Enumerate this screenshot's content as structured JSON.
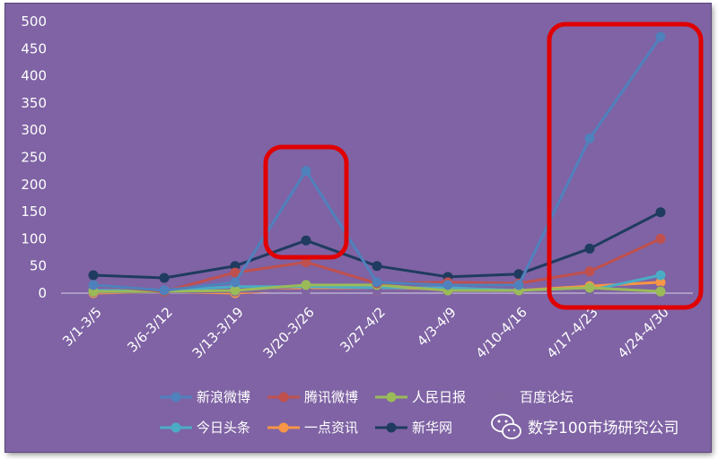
{
  "chart_data": {
    "type": "line",
    "categories": [
      "3/1-3/5",
      "3/6-3/12",
      "3/13-3/19",
      "3/20-3/26",
      "3/27-4/2",
      "4/3-4/9",
      "4/10-4/16",
      "4/17-4/23",
      "4/24-4/30"
    ],
    "ylim": [
      0,
      500
    ],
    "yticks": [
      0,
      50,
      100,
      150,
      200,
      250,
      300,
      350,
      400,
      450,
      500
    ],
    "grid": false,
    "legend_position": "bottom",
    "series": [
      {
        "name": "新浪微博",
        "color": "#4f81bd",
        "values": [
          15,
          5,
          20,
          225,
          20,
          15,
          15,
          285,
          472
        ]
      },
      {
        "name": "腾讯微博",
        "color": "#c0504d",
        "values": [
          15,
          3,
          38,
          57,
          18,
          20,
          18,
          40,
          100
        ]
      },
      {
        "name": "人民日报",
        "color": "#9bbb59",
        "values": [
          3,
          3,
          5,
          15,
          15,
          5,
          5,
          10,
          3
        ]
      },
      {
        "name": "百度论坛",
        "color": "#8064a2",
        "values": [
          2,
          2,
          3,
          5,
          5,
          3,
          3,
          5,
          5
        ]
      },
      {
        "name": "今日头条",
        "color": "#4bacc6",
        "values": [
          5,
          5,
          12,
          12,
          10,
          10,
          5,
          5,
          33
        ]
      },
      {
        "name": "一点资讯",
        "color": "#f79646",
        "values": [
          0,
          3,
          0,
          8,
          5,
          5,
          5,
          13,
          20
        ]
      },
      {
        "name": "新华网",
        "color": "#1f3b5f",
        "values": [
          33,
          28,
          50,
          97,
          50,
          30,
          35,
          82,
          149
        ]
      }
    ],
    "highlights": [
      {
        "from_category": "3/20-3/26",
        "to_category": "3/20-3/26",
        "color": "#e00000"
      },
      {
        "from_category": "4/17-4/23",
        "to_category": "4/24-4/30",
        "color": "#e00000"
      }
    ]
  },
  "watermark": {
    "text": "数字100市场研究公司",
    "icon": "wechat-icon"
  }
}
